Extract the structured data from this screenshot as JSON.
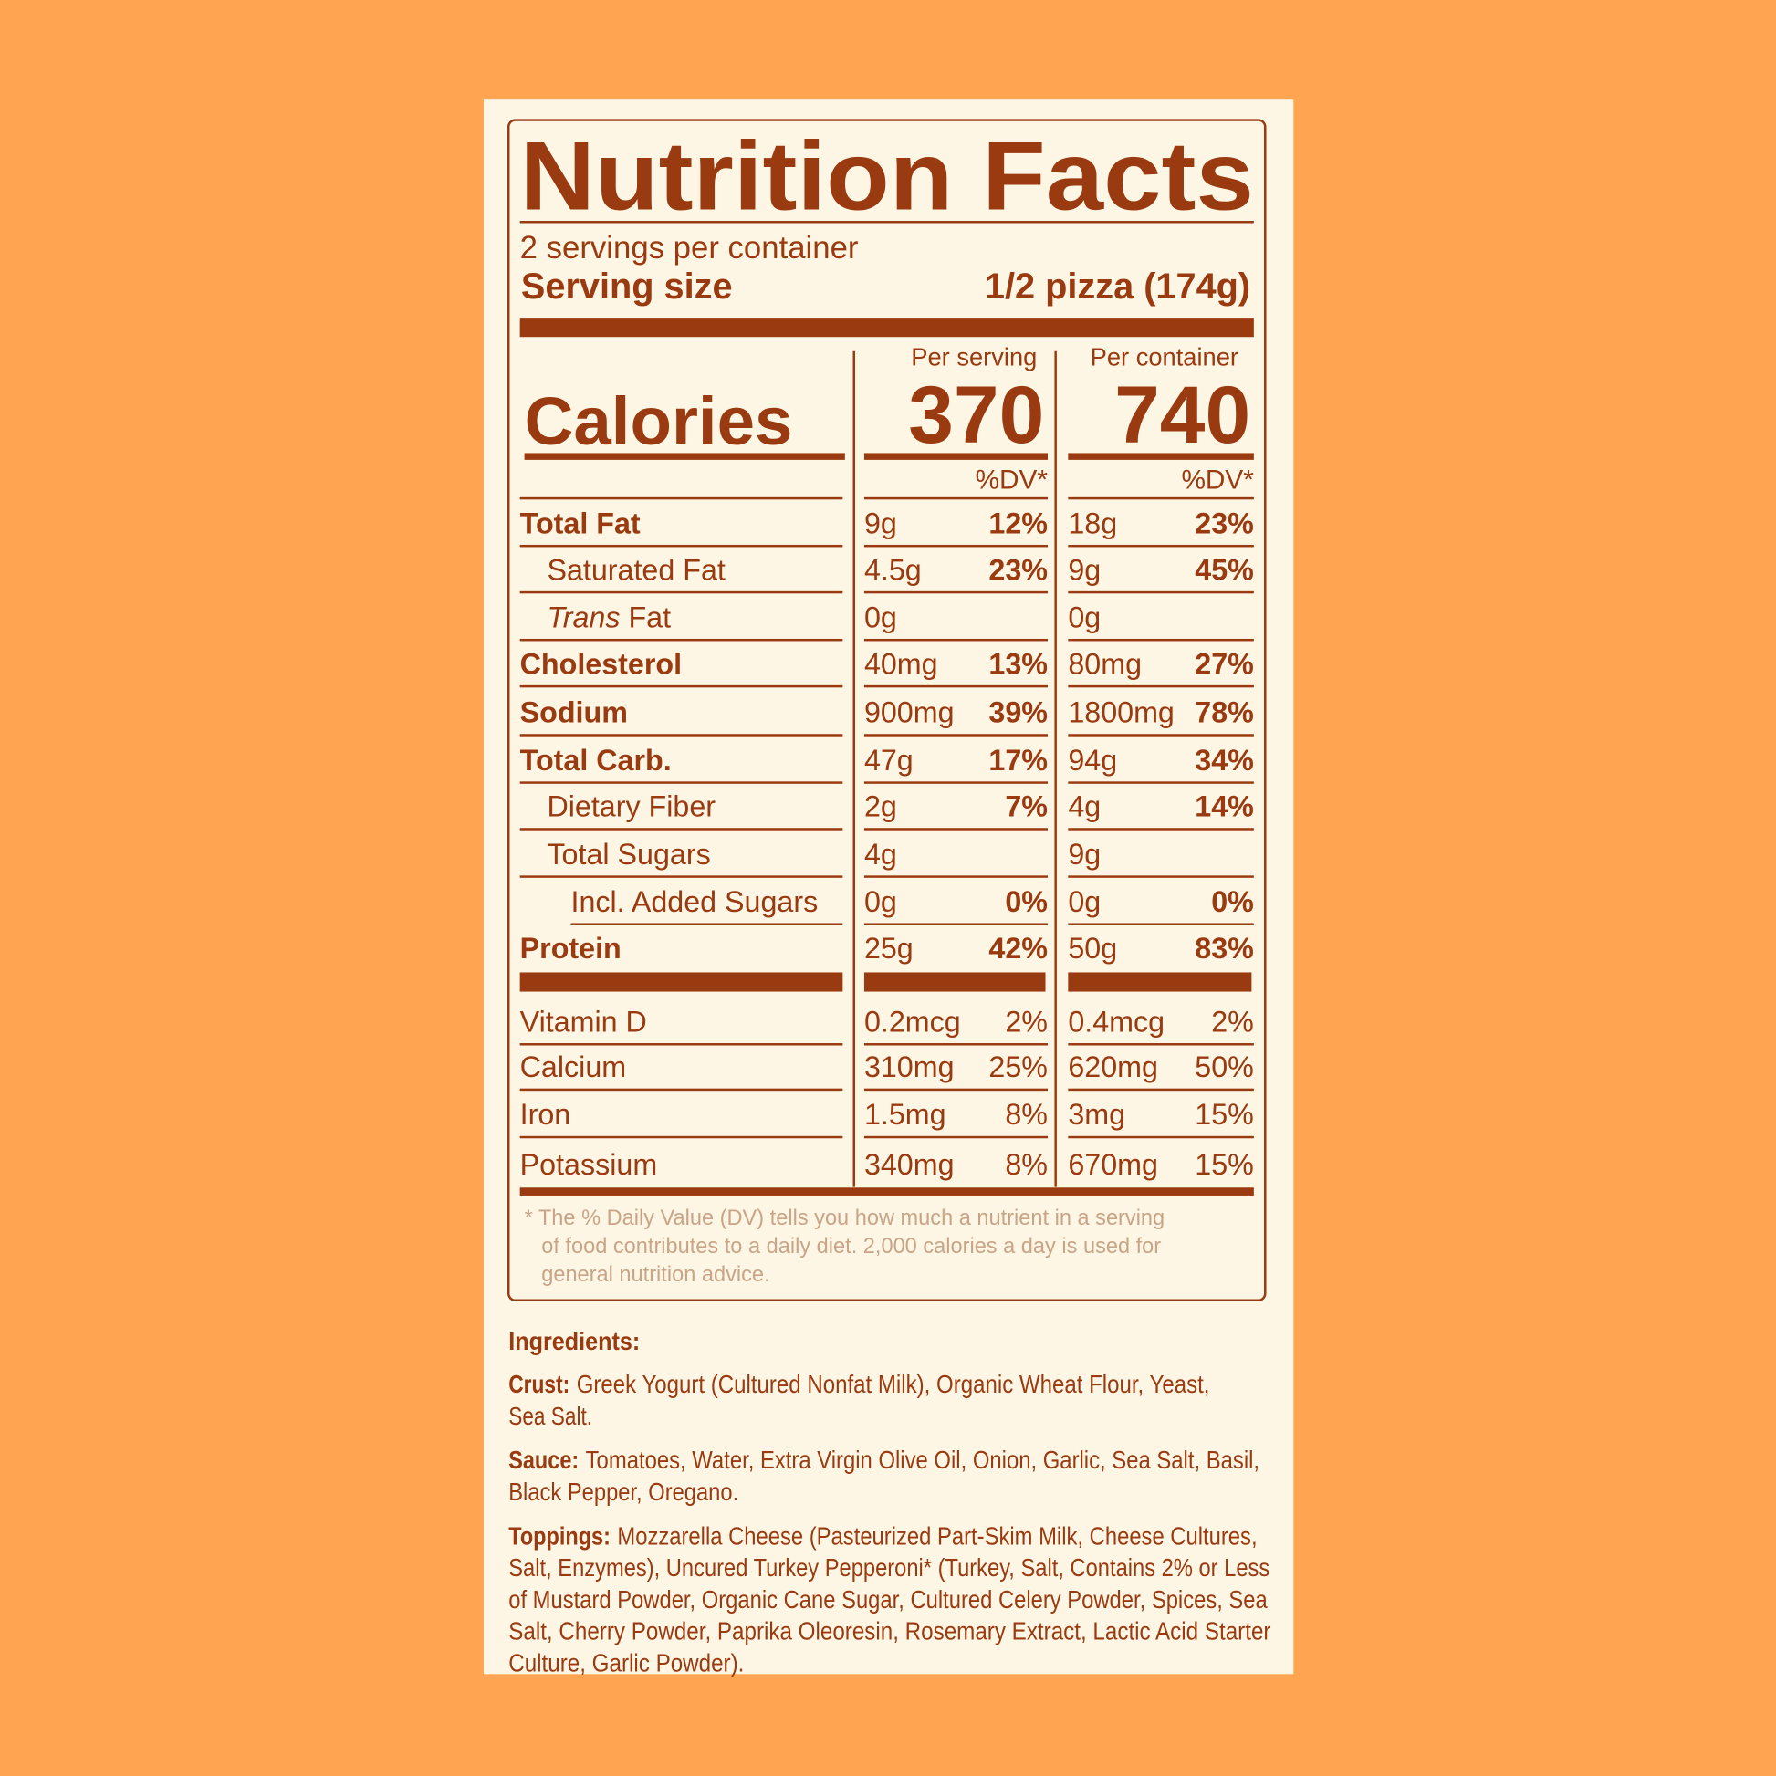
{
  "header": {
    "title": "Nutrition Facts",
    "servings": "2 servings per container",
    "serving_size_label": "Serving size",
    "serving_size_value": "1/2 pizza (174g)"
  },
  "calories": {
    "label": "Calories",
    "per_serving_heading": "Per serving",
    "per_container_heading": "Per container",
    "per_serving": "370",
    "per_container": "740",
    "dv_heading": "%DV*"
  },
  "nutrients": [
    {
      "name": "Total Fat",
      "serving_amount": "9g",
      "serving_dv": "12%",
      "container_amount": "18g",
      "container_dv": "23%"
    },
    {
      "name": "Saturated Fat",
      "serving_amount": "4.5g",
      "serving_dv": "23%",
      "container_amount": "9g",
      "container_dv": "45%"
    },
    {
      "name_italic": "Trans",
      "name": "Fat",
      "serving_amount": "0g",
      "container_amount": "0g"
    },
    {
      "name": "Cholesterol",
      "serving_amount": "40mg",
      "serving_dv": "13%",
      "container_amount": "80mg",
      "container_dv": "27%"
    },
    {
      "name": "Sodium",
      "serving_amount": "900mg",
      "serving_dv": "39%",
      "container_amount": "1800mg",
      "container_dv": "78%"
    },
    {
      "name": "Total Carb.",
      "serving_amount": "47g",
      "serving_dv": "17%",
      "container_amount": "94g",
      "container_dv": "34%"
    },
    {
      "name": "Dietary Fiber",
      "serving_amount": "2g",
      "serving_dv": "7%",
      "container_amount": "4g",
      "container_dv": "14%"
    },
    {
      "name": "Total Sugars",
      "serving_amount": "4g",
      "container_amount": "9g"
    },
    {
      "name": "Incl. Added Sugars",
      "serving_amount": "0g",
      "serving_dv": "0%",
      "container_amount": "0g",
      "container_dv": "0%"
    },
    {
      "name": "Protein",
      "serving_amount": "25g",
      "serving_dv": "42%",
      "container_amount": "50g",
      "container_dv": "83%"
    }
  ],
  "vitamins": [
    {
      "name": "Vitamin D",
      "serving_amount": "0.2mcg",
      "serving_dv": "2%",
      "container_amount": "0.4mcg",
      "container_dv": "2%"
    },
    {
      "name": "Calcium",
      "serving_amount": "310mg",
      "serving_dv": "25%",
      "container_amount": "620mg",
      "container_dv": "50%"
    },
    {
      "name": "Iron",
      "serving_amount": "1.5mg",
      "serving_dv": "8%",
      "container_amount": "3mg",
      "container_dv": "15%"
    },
    {
      "name": "Potassium",
      "serving_amount": "340mg",
      "serving_dv": "8%",
      "container_amount": "670mg",
      "container_dv": "15%"
    }
  ],
  "footnote": [
    "* The % Daily Value (DV) tells you how much a nutrient in a serving",
    "of food contributes to a daily diet. 2,000 calories a day is used for",
    "general nutrition advice."
  ],
  "ingredients": {
    "heading": "Ingredients:",
    "sections": [
      {
        "label": "Crust:",
        "lines": [
          "Greek Yogurt (Cultured Nonfat Milk), Organic Wheat Flour, Yeast,",
          "Sea Salt."
        ]
      },
      {
        "label": "Sauce:",
        "lines": [
          "Tomatoes, Water, Extra Virgin Olive Oil, Onion, Garlic, Sea Salt, Basil,",
          "Black Pepper, Oregano."
        ]
      },
      {
        "label": "Toppings:",
        "lines": [
          "Mozzarella Cheese (Pasteurized Part-Skim Milk, Cheese Cultures,",
          "Salt, Enzymes), Uncured Turkey Pepperoni* (Turkey, Salt, Contains 2% or Less",
          "of Mustard Powder, Organic Cane Sugar, Cultured Celery Powder, Spices, Sea",
          "Salt, Cherry Powder, Paprika Oleoresin, Rosemary Extract, Lactic Acid Starter",
          "Culture, Garlic Powder)."
        ]
      }
    ]
  }
}
